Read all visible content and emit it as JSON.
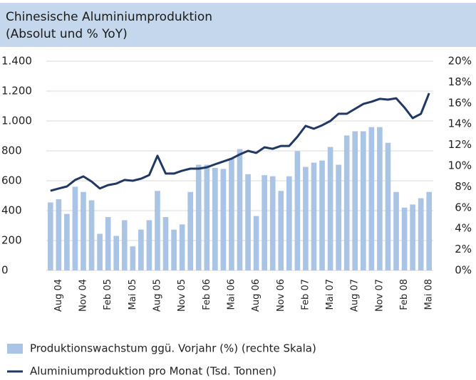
{
  "chart_data": {
    "type": "combo",
    "title": "Chinesische Aluminiumproduktion",
    "subtitle": "(Absolut und % YoY)",
    "categories": [
      null,
      "Aug 04",
      null,
      null,
      "Nov 04",
      null,
      null,
      "Feb 05",
      null,
      null,
      "Mai 05",
      null,
      null,
      "Aug 05",
      null,
      null,
      "Nov 05",
      null,
      null,
      "Feb 06",
      null,
      null,
      "Mai 06",
      null,
      null,
      "Aug 06",
      null,
      null,
      "Nov 06",
      null,
      null,
      "Feb 07",
      null,
      null,
      "Mai 07",
      null,
      null,
      "Aug 07",
      null,
      null,
      "Nov 07",
      null,
      null,
      "Feb 08",
      null,
      null,
      "Mai 08"
    ],
    "series": [
      {
        "name": "Produktionswachstum ggü. Vorjahr (%) (rechte Skala)",
        "type": "bar",
        "axis": "y2",
        "color": "#a9c4e4",
        "values": [
          6.5,
          6.8,
          5.4,
          8.0,
          7.5,
          6.7,
          3.5,
          5.1,
          3.3,
          4.8,
          2.3,
          3.9,
          4.8,
          7.6,
          5.1,
          3.9,
          4.4,
          7.5,
          10.1,
          10.1,
          9.8,
          9.7,
          10.7,
          11.6,
          9.2,
          5.2,
          9.1,
          9.0,
          7.6,
          9.0,
          11.4,
          9.9,
          10.3,
          10.5,
          11.8,
          10.1,
          12.9,
          13.3,
          13.3,
          13.7,
          13.7,
          12.2,
          7.5,
          6.0,
          6.3,
          6.9,
          7.5
        ]
      },
      {
        "name": "Aluminiumproduktion pro Monat (Tsd. Tonnen)",
        "type": "line",
        "axis": "y",
        "color": "#1f3864",
        "values": [
          533,
          548,
          562,
          605,
          629,
          595,
          548,
          571,
          581,
          605,
          600,
          614,
          638,
          767,
          648,
          648,
          667,
          681,
          681,
          690,
          710,
          729,
          748,
          776,
          800,
          786,
          824,
          814,
          833,
          833,
          895,
          967,
          948,
          971,
          1000,
          1048,
          1048,
          1081,
          1114,
          1129,
          1148,
          1143,
          1152,
          1090,
          1019,
          1048,
          1186
        ]
      }
    ],
    "ylim": [
      0,
      1400
    ],
    "yticks": [
      0,
      200,
      400,
      600,
      800,
      {
        "value": 1000,
        "label": "1.000"
      },
      {
        "value": 1200,
        "label": "1.200"
      },
      {
        "value": 1400,
        "label": "1.400"
      }
    ],
    "y2lim": [
      0,
      20
    ],
    "y2ticks": [
      {
        "value": 0,
        "label": "0%"
      },
      {
        "value": 2,
        "label": "2%"
      },
      {
        "value": 4,
        "label": "4%"
      },
      {
        "value": 6,
        "label": "6%"
      },
      {
        "value": 8,
        "label": "8%"
      },
      {
        "value": 10,
        "label": "10%"
      },
      {
        "value": 12,
        "label": "12%"
      },
      {
        "value": 14,
        "label": "14%"
      },
      {
        "value": 16,
        "label": "16%"
      },
      {
        "value": 18,
        "label": "18%"
      },
      {
        "value": 20,
        "label": "20%"
      }
    ],
    "grid": true
  }
}
